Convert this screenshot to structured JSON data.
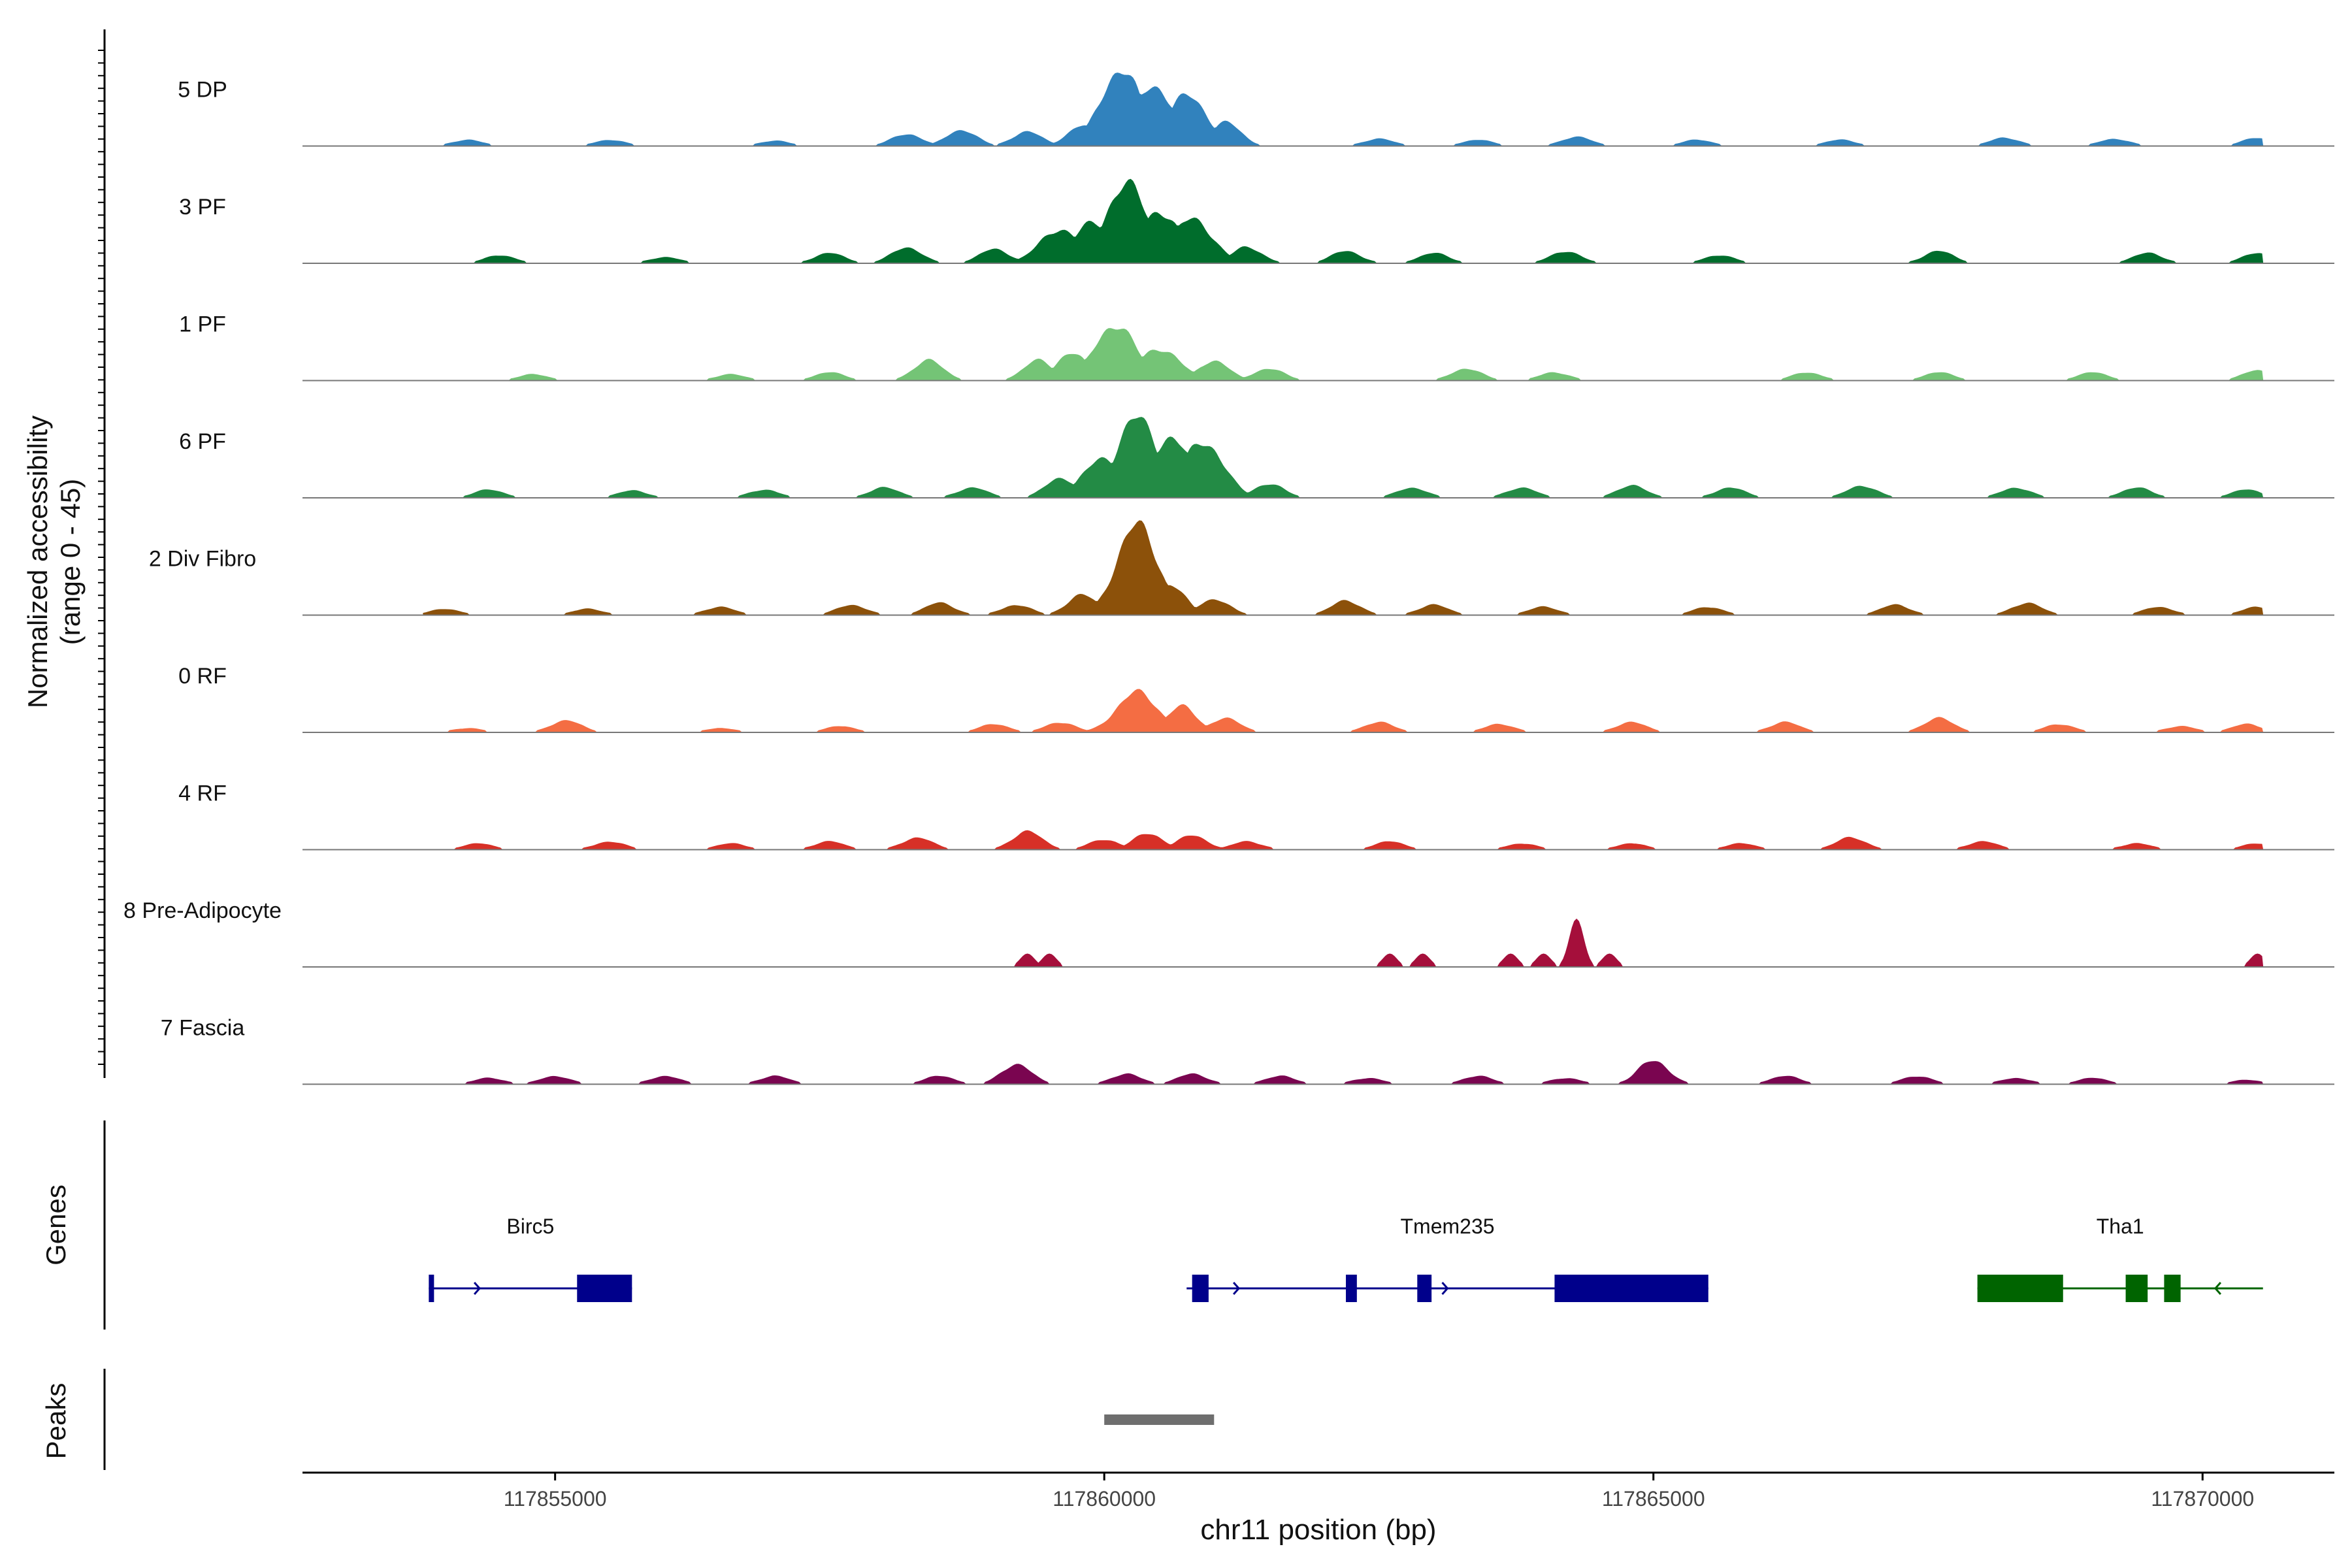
{
  "chart_data": {
    "type": "area",
    "title": "",
    "xlabel": "chr11 position (bp)",
    "ylabel": "Normalized accessibility",
    "ylabel_range": "(range 0 - 45)",
    "ylim": [
      0,
      45
    ],
    "xlim": [
      117852700,
      117871200
    ],
    "x_ticks": [
      117855000,
      117860000,
      117865000,
      117870000
    ],
    "x_tick_labels": [
      "117855000",
      "117860000",
      "117865000",
      "117870000"
    ],
    "bin_size": 500,
    "series": [
      {
        "name": "5 DP",
        "color": "#3182bd",
        "peaks": [
          {
            "x": 117854200,
            "y": 3
          },
          {
            "x": 117855500,
            "y": 3
          },
          {
            "x": 117857000,
            "y": 2.5
          },
          {
            "x": 117858200,
            "y": 6
          },
          {
            "x": 117858700,
            "y": 8
          },
          {
            "x": 117859300,
            "y": 7
          },
          {
            "x": 117859800,
            "y": 10
          },
          {
            "x": 117860150,
            "y": 38
          },
          {
            "x": 117860450,
            "y": 30
          },
          {
            "x": 117860750,
            "y": 25
          },
          {
            "x": 117861100,
            "y": 12
          },
          {
            "x": 117862500,
            "y": 3.5
          },
          {
            "x": 117863400,
            "y": 3
          },
          {
            "x": 117864300,
            "y": 4.5
          },
          {
            "x": 117865400,
            "y": 3
          },
          {
            "x": 117866700,
            "y": 3
          },
          {
            "x": 117868200,
            "y": 4
          },
          {
            "x": 117869200,
            "y": 3.5
          },
          {
            "x": 117870500,
            "y": 4
          }
        ]
      },
      {
        "name": "3 PF",
        "color": "#006d2c",
        "peaks": [
          {
            "x": 117854500,
            "y": 4
          },
          {
            "x": 117856000,
            "y": 3
          },
          {
            "x": 117857500,
            "y": 5
          },
          {
            "x": 117858200,
            "y": 8
          },
          {
            "x": 117859000,
            "y": 7
          },
          {
            "x": 117859600,
            "y": 17
          },
          {
            "x": 117859900,
            "y": 20
          },
          {
            "x": 117860200,
            "y": 40
          },
          {
            "x": 117860500,
            "y": 26
          },
          {
            "x": 117860800,
            "y": 22
          },
          {
            "x": 117861300,
            "y": 8
          },
          {
            "x": 117862200,
            "y": 6
          },
          {
            "x": 117863000,
            "y": 5
          },
          {
            "x": 117864200,
            "y": 6
          },
          {
            "x": 117865600,
            "y": 4
          },
          {
            "x": 117867600,
            "y": 6
          },
          {
            "x": 117869500,
            "y": 5
          },
          {
            "x": 117870500,
            "y": 5
          }
        ]
      },
      {
        "name": "1 PF",
        "color": "#74c476",
        "peaks": [
          {
            "x": 117854800,
            "y": 3
          },
          {
            "x": 117856600,
            "y": 3
          },
          {
            "x": 117857500,
            "y": 4
          },
          {
            "x": 117858400,
            "y": 10
          },
          {
            "x": 117859400,
            "y": 10
          },
          {
            "x": 117859700,
            "y": 14
          },
          {
            "x": 117860100,
            "y": 28
          },
          {
            "x": 117860500,
            "y": 16
          },
          {
            "x": 117861000,
            "y": 10
          },
          {
            "x": 117861500,
            "y": 6
          },
          {
            "x": 117863300,
            "y": 6
          },
          {
            "x": 117864100,
            "y": 4
          },
          {
            "x": 117866400,
            "y": 4
          },
          {
            "x": 117867600,
            "y": 4
          },
          {
            "x": 117869000,
            "y": 4
          },
          {
            "x": 117870500,
            "y": 5
          }
        ]
      },
      {
        "name": "6 PF",
        "color": "#238b45",
        "peaks": [
          {
            "x": 117854400,
            "y": 4
          },
          {
            "x": 117855700,
            "y": 3.5
          },
          {
            "x": 117856900,
            "y": 4
          },
          {
            "x": 117858000,
            "y": 5
          },
          {
            "x": 117858800,
            "y": 5
          },
          {
            "x": 117859600,
            "y": 10
          },
          {
            "x": 117860000,
            "y": 20
          },
          {
            "x": 117860300,
            "y": 40
          },
          {
            "x": 117860600,
            "y": 30
          },
          {
            "x": 117860900,
            "y": 28
          },
          {
            "x": 117861500,
            "y": 7
          },
          {
            "x": 117862800,
            "y": 5
          },
          {
            "x": 117863800,
            "y": 5
          },
          {
            "x": 117864800,
            "y": 6
          },
          {
            "x": 117865700,
            "y": 5
          },
          {
            "x": 117866900,
            "y": 6
          },
          {
            "x": 117868300,
            "y": 5
          },
          {
            "x": 117869400,
            "y": 5
          },
          {
            "x": 117870400,
            "y": 4
          }
        ]
      },
      {
        "name": "2 Div Fibro",
        "color": "#8c510a",
        "peaks": [
          {
            "x": 117854000,
            "y": 3
          },
          {
            "x": 117855300,
            "y": 3
          },
          {
            "x": 117856500,
            "y": 4
          },
          {
            "x": 117857700,
            "y": 5
          },
          {
            "x": 117858500,
            "y": 6
          },
          {
            "x": 117859200,
            "y": 5
          },
          {
            "x": 117859800,
            "y": 10
          },
          {
            "x": 117860300,
            "y": 45
          },
          {
            "x": 117860600,
            "y": 15
          },
          {
            "x": 117861000,
            "y": 8
          },
          {
            "x": 117862200,
            "y": 7
          },
          {
            "x": 117863000,
            "y": 5
          },
          {
            "x": 117864000,
            "y": 4
          },
          {
            "x": 117865500,
            "y": 4
          },
          {
            "x": 117867200,
            "y": 5
          },
          {
            "x": 117868400,
            "y": 6
          },
          {
            "x": 117869600,
            "y": 4
          },
          {
            "x": 117870500,
            "y": 4
          }
        ]
      },
      {
        "name": "0 RF",
        "color": "#f46d43",
        "peaks": [
          {
            "x": 117854200,
            "y": 2
          },
          {
            "x": 117855100,
            "y": 6
          },
          {
            "x": 117856500,
            "y": 2
          },
          {
            "x": 117857600,
            "y": 3
          },
          {
            "x": 117859000,
            "y": 4
          },
          {
            "x": 117859600,
            "y": 5
          },
          {
            "x": 117860300,
            "y": 20
          },
          {
            "x": 117860700,
            "y": 13
          },
          {
            "x": 117861100,
            "y": 7
          },
          {
            "x": 117862500,
            "y": 5
          },
          {
            "x": 117863600,
            "y": 4
          },
          {
            "x": 117864800,
            "y": 5
          },
          {
            "x": 117866200,
            "y": 5
          },
          {
            "x": 117867600,
            "y": 7
          },
          {
            "x": 117868700,
            "y": 4
          },
          {
            "x": 117869800,
            "y": 3
          },
          {
            "x": 117870400,
            "y": 4
          }
        ]
      },
      {
        "name": "4 RF",
        "color": "#d73027",
        "peaks": [
          {
            "x": 117854300,
            "y": 3
          },
          {
            "x": 117855500,
            "y": 4
          },
          {
            "x": 117856600,
            "y": 3
          },
          {
            "x": 117857500,
            "y": 4
          },
          {
            "x": 117858300,
            "y": 6
          },
          {
            "x": 117859300,
            "y": 9
          },
          {
            "x": 117860000,
            "y": 5
          },
          {
            "x": 117860400,
            "y": 8
          },
          {
            "x": 117860800,
            "y": 7
          },
          {
            "x": 117861300,
            "y": 4
          },
          {
            "x": 117862600,
            "y": 4
          },
          {
            "x": 117863800,
            "y": 3
          },
          {
            "x": 117864800,
            "y": 3
          },
          {
            "x": 117865800,
            "y": 3
          },
          {
            "x": 117866800,
            "y": 6
          },
          {
            "x": 117868000,
            "y": 4
          },
          {
            "x": 117869400,
            "y": 3
          },
          {
            "x": 117870500,
            "y": 3
          }
        ]
      },
      {
        "name": "8 Pre-Adipocyte",
        "color": "#a50f3b",
        "peaks": [
          {
            "x": 117859300,
            "y": 6
          },
          {
            "x": 117859500,
            "y": 6
          },
          {
            "x": 117862600,
            "y": 6
          },
          {
            "x": 117862900,
            "y": 6
          },
          {
            "x": 117863700,
            "y": 6
          },
          {
            "x": 117864000,
            "y": 6
          },
          {
            "x": 117864300,
            "y": 22
          },
          {
            "x": 117864600,
            "y": 6
          },
          {
            "x": 117870500,
            "y": 6
          }
        ]
      },
      {
        "name": "7 Fascia",
        "color": "#7a0550",
        "peaks": [
          {
            "x": 117854400,
            "y": 3
          },
          {
            "x": 117855000,
            "y": 4
          },
          {
            "x": 117856000,
            "y": 4
          },
          {
            "x": 117857000,
            "y": 4
          },
          {
            "x": 117858500,
            "y": 4
          },
          {
            "x": 117859200,
            "y": 10
          },
          {
            "x": 117860200,
            "y": 5
          },
          {
            "x": 117860800,
            "y": 5
          },
          {
            "x": 117861600,
            "y": 4
          },
          {
            "x": 117862400,
            "y": 3
          },
          {
            "x": 117863400,
            "y": 4
          },
          {
            "x": 117864200,
            "y": 3
          },
          {
            "x": 117865000,
            "y": 12
          },
          {
            "x": 117866200,
            "y": 4
          },
          {
            "x": 117867400,
            "y": 4
          },
          {
            "x": 117868300,
            "y": 3
          },
          {
            "x": 117869000,
            "y": 3
          },
          {
            "x": 117870400,
            "y": 2
          }
        ]
      }
    ],
    "genes": [
      {
        "name": "Birc5",
        "strand": "+",
        "color": "#00008b",
        "start": 117853850,
        "end": 117855700,
        "exons": [
          [
            117853850,
            117853880
          ],
          [
            117855200,
            117855700
          ]
        ]
      },
      {
        "name": "Tmem235",
        "strand": "+",
        "color": "#00008b",
        "start": 117860750,
        "end": 117865500,
        "exons": [
          [
            117860800,
            117860950
          ],
          [
            117862200,
            117862300
          ],
          [
            117862850,
            117862980
          ],
          [
            117864100,
            117865500
          ]
        ]
      },
      {
        "name": "Tha1",
        "strand": "-",
        "color": "#006400",
        "start": 117867950,
        "end": 117870550,
        "exons": [
          [
            117867950,
            117868730
          ],
          [
            117869300,
            117869500
          ],
          [
            117869650,
            117869800
          ]
        ]
      }
    ],
    "peaks_track": [
      {
        "start": 117860000,
        "end": 117861000
      }
    ],
    "genes_label": "Genes",
    "peaks_label": "Peaks"
  }
}
